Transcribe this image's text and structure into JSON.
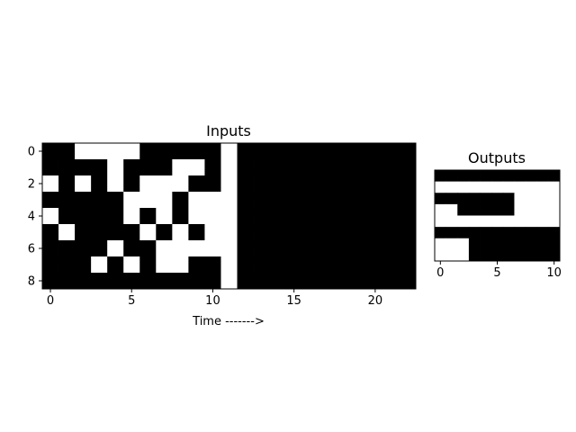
{
  "chart_data": [
    {
      "type": "heatmap",
      "title": "Inputs",
      "xlabel": "Time ------->",
      "ylabel": "",
      "colormap": {
        "0": "#000000",
        "1": "#ffffff"
      },
      "x_ticks": [
        "0",
        "5",
        "10",
        "15",
        "20"
      ],
      "y_ticks": [
        "0",
        "2",
        "4",
        "6",
        "8"
      ],
      "xlim": [
        -0.5,
        22.5
      ],
      "ylim": [
        8.5,
        -0.5
      ],
      "grid": [
        [
          0,
          0,
          1,
          1,
          1,
          1,
          0,
          0,
          0,
          0,
          0,
          1,
          0,
          0,
          0,
          0,
          0,
          0,
          0,
          0,
          0,
          0,
          0
        ],
        [
          0,
          0,
          0,
          0,
          1,
          0,
          0,
          0,
          1,
          1,
          0,
          1,
          0,
          0,
          0,
          0,
          0,
          0,
          0,
          0,
          0,
          0,
          0
        ],
        [
          1,
          0,
          1,
          0,
          1,
          0,
          1,
          1,
          1,
          0,
          0,
          1,
          0,
          0,
          0,
          0,
          0,
          0,
          0,
          0,
          0,
          0,
          0
        ],
        [
          0,
          0,
          0,
          0,
          0,
          1,
          1,
          1,
          0,
          1,
          1,
          1,
          0,
          0,
          0,
          0,
          0,
          0,
          0,
          0,
          0,
          0,
          0
        ],
        [
          1,
          0,
          0,
          0,
          0,
          1,
          0,
          1,
          0,
          1,
          1,
          1,
          0,
          0,
          0,
          0,
          0,
          0,
          0,
          0,
          0,
          0,
          0
        ],
        [
          0,
          1,
          0,
          0,
          0,
          0,
          1,
          0,
          1,
          0,
          1,
          1,
          0,
          0,
          0,
          0,
          0,
          0,
          0,
          0,
          0,
          0,
          0
        ],
        [
          0,
          0,
          0,
          0,
          1,
          0,
          0,
          1,
          1,
          1,
          1,
          1,
          0,
          0,
          0,
          0,
          0,
          0,
          0,
          0,
          0,
          0,
          0
        ],
        [
          0,
          0,
          0,
          1,
          0,
          1,
          0,
          1,
          1,
          0,
          0,
          1,
          0,
          0,
          0,
          0,
          0,
          0,
          0,
          0,
          0,
          0,
          0
        ],
        [
          0,
          0,
          0,
          0,
          0,
          0,
          0,
          0,
          0,
          0,
          0,
          1,
          0,
          0,
          0,
          0,
          0,
          0,
          0,
          0,
          0,
          0,
          0
        ]
      ]
    },
    {
      "type": "heatmap",
      "title": "Outputs",
      "xlabel": "",
      "ylabel": "",
      "colormap": {
        "0": "#000000",
        "1": "#ffffff"
      },
      "x_ticks": [
        "0",
        "5",
        "10"
      ],
      "y_ticks": [],
      "xlim": [
        -0.5,
        10.5
      ],
      "ylim": [
        7.5,
        -0.5
      ],
      "grid": [
        [
          0,
          0,
          0,
          0,
          0,
          0,
          0,
          0,
          0,
          0,
          0
        ],
        [
          1,
          1,
          1,
          1,
          1,
          1,
          1,
          1,
          1,
          1,
          1
        ],
        [
          0,
          0,
          0,
          0,
          0,
          0,
          0,
          1,
          1,
          1,
          1
        ],
        [
          1,
          1,
          0,
          0,
          0,
          0,
          0,
          1,
          1,
          1,
          1
        ],
        [
          1,
          1,
          1,
          1,
          1,
          1,
          1,
          1,
          1,
          1,
          1
        ],
        [
          0,
          0,
          0,
          0,
          0,
          0,
          0,
          0,
          0,
          0,
          0
        ],
        [
          1,
          1,
          1,
          0,
          0,
          0,
          0,
          0,
          0,
          0,
          0
        ],
        [
          1,
          1,
          1,
          0,
          0,
          0,
          0,
          0,
          0,
          0,
          0
        ]
      ]
    }
  ]
}
